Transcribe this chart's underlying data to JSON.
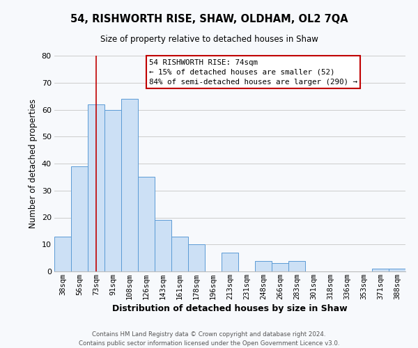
{
  "title": "54, RISHWORTH RISE, SHAW, OLDHAM, OL2 7QA",
  "subtitle": "Size of property relative to detached houses in Shaw",
  "xlabel": "Distribution of detached houses by size in Shaw",
  "ylabel": "Number of detached properties",
  "categories": [
    "38sqm",
    "56sqm",
    "73sqm",
    "91sqm",
    "108sqm",
    "126sqm",
    "143sqm",
    "161sqm",
    "178sqm",
    "196sqm",
    "213sqm",
    "231sqm",
    "248sqm",
    "266sqm",
    "283sqm",
    "301sqm",
    "318sqm",
    "336sqm",
    "353sqm",
    "371sqm",
    "388sqm"
  ],
  "values": [
    13,
    39,
    62,
    60,
    64,
    35,
    19,
    13,
    10,
    0,
    7,
    0,
    4,
    3,
    4,
    0,
    0,
    0,
    0,
    1,
    1
  ],
  "bar_color": "#cce0f5",
  "bar_edge_color": "#5b9bd5",
  "ylim": [
    0,
    80
  ],
  "yticks": [
    0,
    10,
    20,
    30,
    40,
    50,
    60,
    70,
    80
  ],
  "grid_color": "#cccccc",
  "background_color": "#f7f9fc",
  "vline_x_index": 2,
  "vline_color": "#c00000",
  "annotation_title": "54 RISHWORTH RISE: 74sqm",
  "annotation_line1": "← 15% of detached houses are smaller (52)",
  "annotation_line2": "84% of semi-detached houses are larger (290) →",
  "annotation_box_edge": "#c00000",
  "footer_line1": "Contains HM Land Registry data © Crown copyright and database right 2024.",
  "footer_line2": "Contains public sector information licensed under the Open Government Licence v3.0."
}
